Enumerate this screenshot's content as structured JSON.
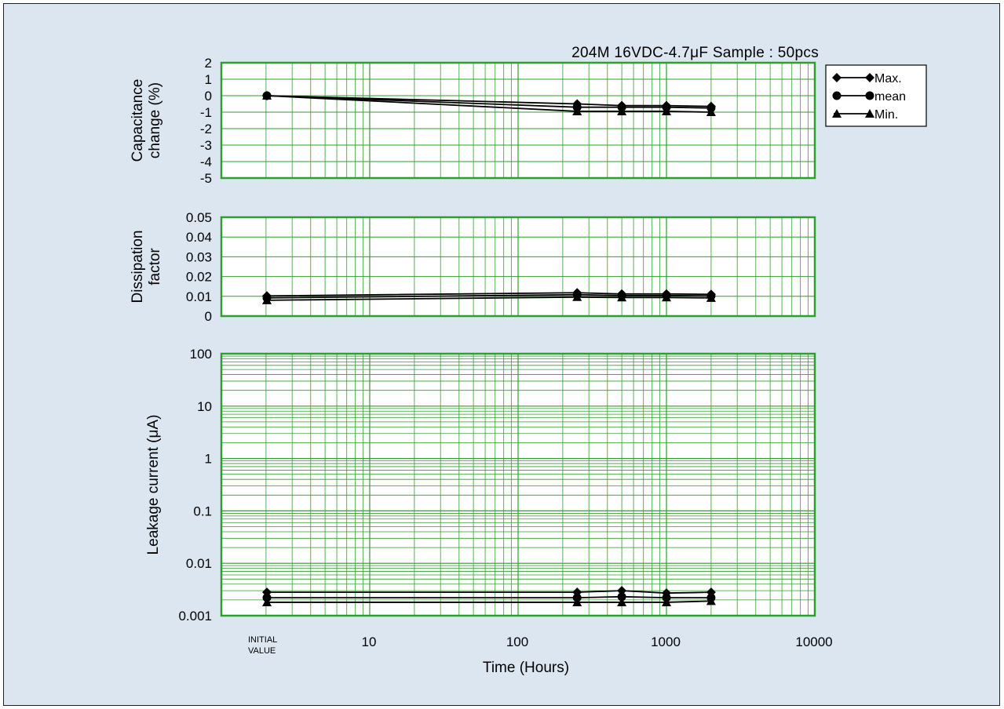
{
  "colors": {
    "background": "#dce6f1",
    "plot_frame": "#2e9e2e",
    "grid": "#2e9e2e",
    "series": "#000000"
  },
  "chart_data": [
    {
      "type": "line",
      "title": "204M 16VDC-4.7μF Sample : 50pcs",
      "ylabel": [
        "Capacitance",
        "change  (%)"
      ],
      "ylim": [
        -5,
        2
      ],
      "yticks": [
        2,
        1,
        0,
        -1,
        -2,
        -3,
        -4,
        -5
      ],
      "xscale": "log",
      "xlim": [
        1,
        10000
      ],
      "grid": true,
      "legend": {
        "position": "right",
        "entries": [
          {
            "name": "Max.",
            "marker": "diamond"
          },
          {
            "name": "mean",
            "marker": "circle"
          },
          {
            "name": "Min.",
            "marker": "triangle"
          }
        ]
      },
      "x": [
        "INITIAL VALUE",
        250,
        500,
        1000,
        2000
      ],
      "series": [
        {
          "name": "Max.",
          "marker": "diamond",
          "values": [
            0,
            -0.5,
            -0.6,
            -0.6,
            -0.65
          ]
        },
        {
          "name": "mean",
          "marker": "circle",
          "values": [
            0,
            -0.7,
            -0.7,
            -0.7,
            -0.75
          ]
        },
        {
          "name": "Min.",
          "marker": "triangle",
          "values": [
            0,
            -0.95,
            -0.95,
            -0.95,
            -1.0
          ]
        }
      ]
    },
    {
      "type": "line",
      "ylabel": [
        "Dissipation",
        "factor"
      ],
      "ylim": [
        0,
        0.05
      ],
      "yticks": [
        "0.05",
        "0.04",
        "0.03",
        "0.02",
        "0.01",
        "0"
      ],
      "xscale": "log",
      "xlim": [
        1,
        10000
      ],
      "grid": true,
      "x": [
        "INITIAL VALUE",
        250,
        500,
        1000,
        2000
      ],
      "series": [
        {
          "name": "Max.",
          "marker": "diamond",
          "values": [
            0.0102,
            0.0118,
            0.0112,
            0.0112,
            0.011
          ]
        },
        {
          "name": "mean",
          "marker": "circle",
          "values": [
            0.0092,
            0.0108,
            0.0104,
            0.0104,
            0.0102
          ]
        },
        {
          "name": "Min.",
          "marker": "triangle",
          "values": [
            0.008,
            0.0096,
            0.0094,
            0.0094,
            0.0092
          ]
        }
      ]
    },
    {
      "type": "line",
      "ylabel": [
        "Leakage  current (μA)"
      ],
      "yscale": "log",
      "ylim": [
        0.001,
        100
      ],
      "yticks": [
        "100",
        "10",
        "1",
        "0.1",
        "0.01",
        "0.001"
      ],
      "xscale": "log",
      "xlim": [
        1,
        10000
      ],
      "grid": true,
      "xlabel": "Time (Hours)",
      "xticks": [
        {
          "value": 10,
          "label": "10"
        },
        {
          "value": 100,
          "label": "100"
        },
        {
          "value": 1000,
          "label": "1000"
        },
        {
          "value": 10000,
          "label": "10000"
        }
      ],
      "initial_label": [
        "INITIAL",
        "VALUE"
      ],
      "x": [
        "INITIAL VALUE",
        250,
        500,
        1000,
        2000
      ],
      "series": [
        {
          "name": "Max.",
          "marker": "diamond",
          "values": [
            0.0028,
            0.0028,
            0.003,
            0.0027,
            0.0028
          ]
        },
        {
          "name": "mean",
          "marker": "circle",
          "values": [
            0.0022,
            0.0022,
            0.0023,
            0.0022,
            0.0022
          ]
        },
        {
          "name": "Min.",
          "marker": "triangle",
          "values": [
            0.0018,
            0.0018,
            0.0018,
            0.0018,
            0.0019
          ]
        }
      ]
    }
  ]
}
